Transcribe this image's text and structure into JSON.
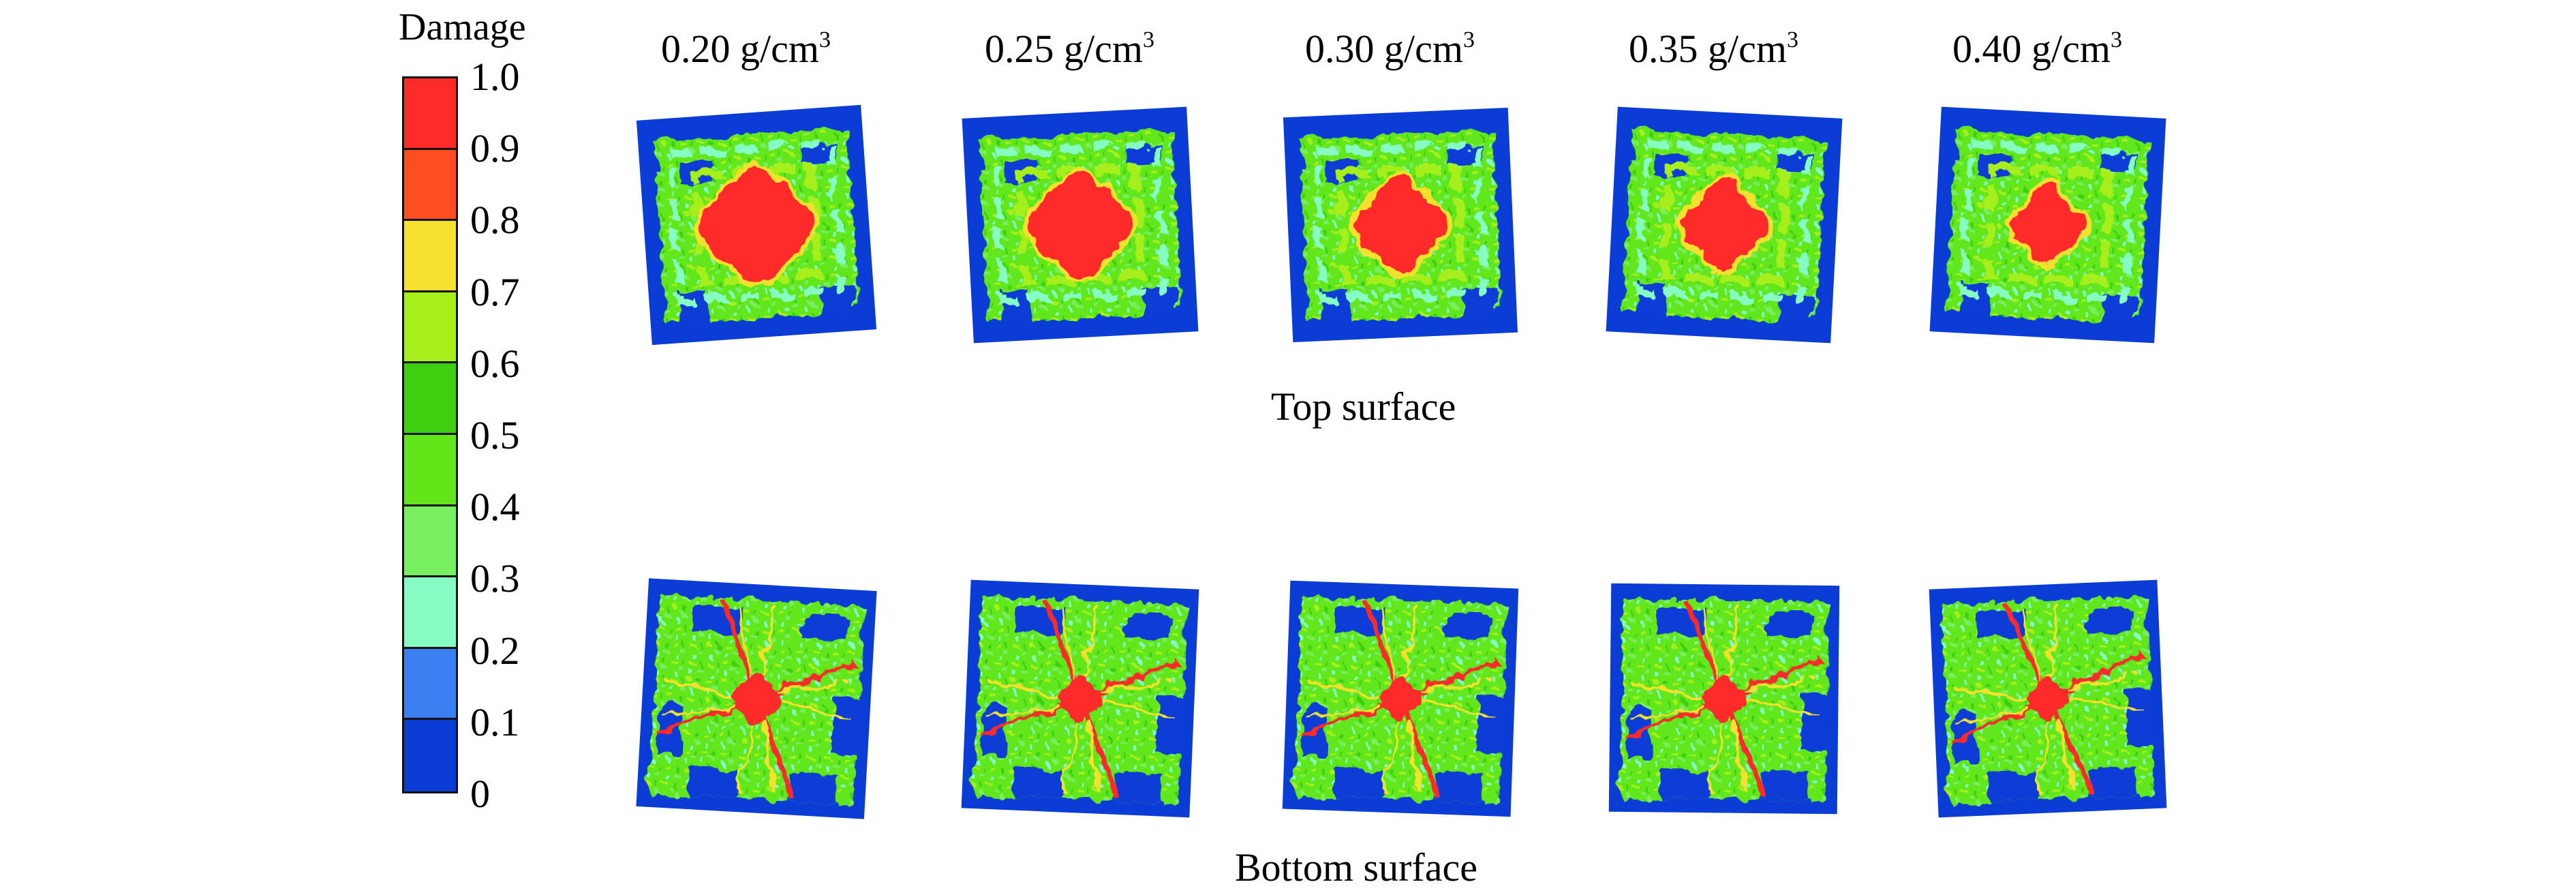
{
  "legend": {
    "title": "Damage",
    "ticks": [
      "1.0",
      "0.9",
      "0.8",
      "0.7",
      "0.6",
      "0.5",
      "0.4",
      "0.3",
      "0.2",
      "0.1",
      "0"
    ],
    "band_colors": [
      "#ff2a2a",
      "#ff4d22",
      "#f4e12d",
      "#a6ef1a",
      "#3ecf10",
      "#62e61a",
      "#78ee61",
      "#86fcc4",
      "#3b7ff0",
      "#0b3cd6"
    ]
  },
  "columns": [
    {
      "value": "0.20 g/cm",
      "sup": "3",
      "core_top": 0.42,
      "core_bottom": 0.18
    },
    {
      "value": "0.25 g/cm",
      "sup": "3",
      "core_top": 0.38,
      "core_bottom": 0.16
    },
    {
      "value": "0.30 g/cm",
      "sup": "3",
      "core_top": 0.34,
      "core_bottom": 0.15
    },
    {
      "value": "0.35 g/cm",
      "sup": "3",
      "core_top": 0.32,
      "core_bottom": 0.16
    },
    {
      "value": "0.40 g/cm",
      "sup": "3",
      "core_top": 0.28,
      "core_bottom": 0.15
    }
  ],
  "rows": {
    "top_caption": "Top surface",
    "bottom_caption": "Bottom surface"
  },
  "colors": {
    "damage_low": "#0b3cd6",
    "damage_mid_green": "#62e61a",
    "damage_light_green": "#a6ef1a",
    "damage_cyan": "#86fcc4",
    "damage_high": "#ff2a2a",
    "damage_yellow": "#f4e12d"
  }
}
